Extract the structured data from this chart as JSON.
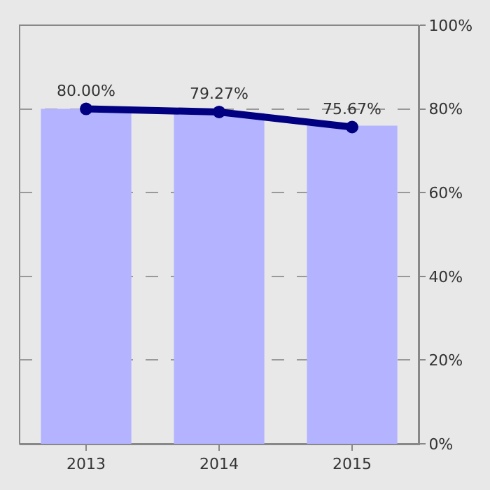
{
  "chart_data": {
    "type": "bar",
    "categories": [
      "2013",
      "2014",
      "2015"
    ],
    "series": [
      {
        "color": "#b3b3ff",
        "values": [
          80,
          79,
          76
        ]
      },
      {
        "type": "line",
        "color": "#000080",
        "values": [
          80.0,
          79.27,
          75.67
        ],
        "marker": "circle",
        "value_labels": [
          "80.00%",
          "79.27%",
          "75.67%"
        ]
      }
    ],
    "ylim": [
      0,
      100
    ],
    "yticks": [
      {
        "value": 0,
        "label": "0%"
      },
      {
        "value": 20,
        "label": "20%"
      },
      {
        "value": 40,
        "label": "40%"
      },
      {
        "value": 60,
        "label": "60%"
      },
      {
        "value": 80,
        "label": "80%"
      },
      {
        "value": 100,
        "label": "100%"
      }
    ],
    "grid": "y"
  }
}
